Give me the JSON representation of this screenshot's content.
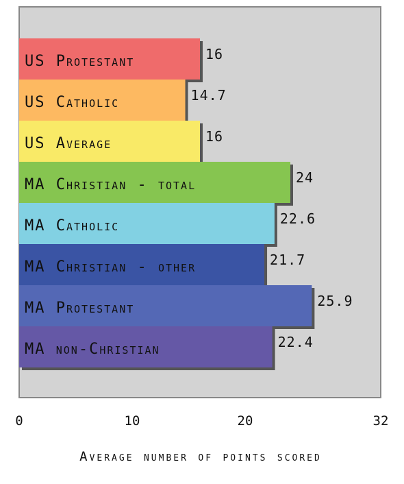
{
  "chart_data": {
    "type": "bar",
    "orientation": "horizontal",
    "categories": [
      "US Protestant",
      "US Catholic",
      "US Average",
      "MA Christian - total",
      "MA Catholic",
      "MA Christian - other",
      "MA Protestant",
      "MA non-Christian"
    ],
    "values": [
      16,
      14.7,
      16,
      24,
      22.6,
      21.7,
      25.9,
      22.4
    ],
    "value_labels": [
      "16",
      "14.7",
      "16",
      "24",
      "22.6",
      "21.7",
      "25.9",
      "22.4"
    ],
    "colors": [
      "#ef6b6b",
      "#fdb961",
      "#f9ea67",
      "#86c550",
      "#82d1e3",
      "#3a54a4",
      "#5468b5",
      "#6558a6"
    ],
    "xlabel": "Average number of points scored",
    "ticks": [
      0,
      10,
      20,
      32
    ],
    "tick_labels": [
      "0",
      "10",
      "20",
      "32"
    ],
    "xlim": [
      0,
      32
    ],
    "grid": false,
    "plot_background": "#d3d3d3"
  }
}
